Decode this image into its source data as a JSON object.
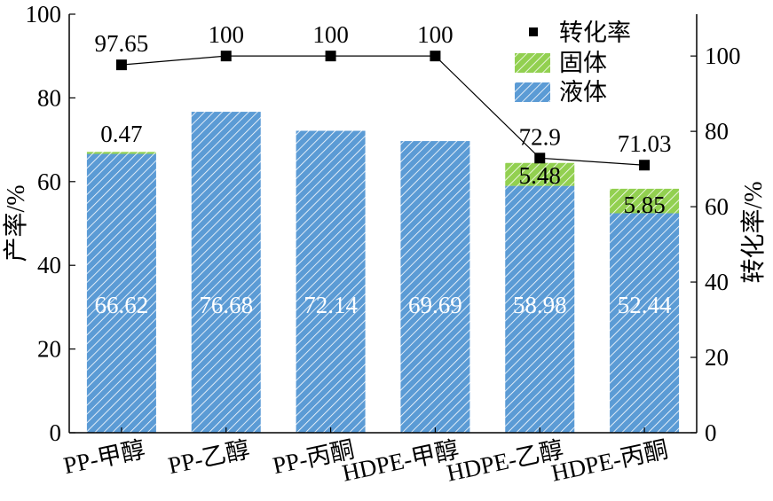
{
  "chart_data": {
    "type": "bar",
    "stacked": true,
    "categories": [
      "PP-甲醇",
      "PP-乙醇",
      "PP-丙酮",
      "HDPE-甲醇",
      "HDPE-乙醇",
      "HDPE-丙酮"
    ],
    "series": [
      {
        "name": "液体",
        "values": [
          66.62,
          76.68,
          72.14,
          69.69,
          58.98,
          52.44
        ],
        "labels": [
          "66.62",
          "76.68",
          "72.14",
          "69.69",
          "58.98",
          "52.44"
        ],
        "color": "#5b9bd5",
        "pattern": "diagonal-hatch"
      },
      {
        "name": "固体",
        "values": [
          0.47,
          0,
          0,
          0,
          5.48,
          5.85
        ],
        "labels": [
          "0.47",
          "",
          "",
          "",
          "5.48",
          "5.85"
        ],
        "color": "#92d050",
        "pattern": "diagonal-hatch"
      }
    ],
    "line_series": {
      "name": "转化率",
      "axis": "right",
      "values": [
        97.65,
        100,
        100,
        100,
        72.9,
        71.03
      ],
      "labels": [
        "97.65",
        "100",
        "100",
        "100",
        "72.9",
        "71.03"
      ],
      "marker": "square",
      "color": "#000000"
    },
    "ylabel": "产率/%",
    "ylabel_right": "转化率/%",
    "ylim": [
      0,
      100
    ],
    "ylim_right": [
      0,
      111.1
    ],
    "yticks": [
      0,
      20,
      40,
      60,
      80,
      100
    ],
    "yticks_right": [
      0,
      20,
      40,
      60,
      80,
      100
    ],
    "legend_position": "top-right",
    "grid": false
  }
}
